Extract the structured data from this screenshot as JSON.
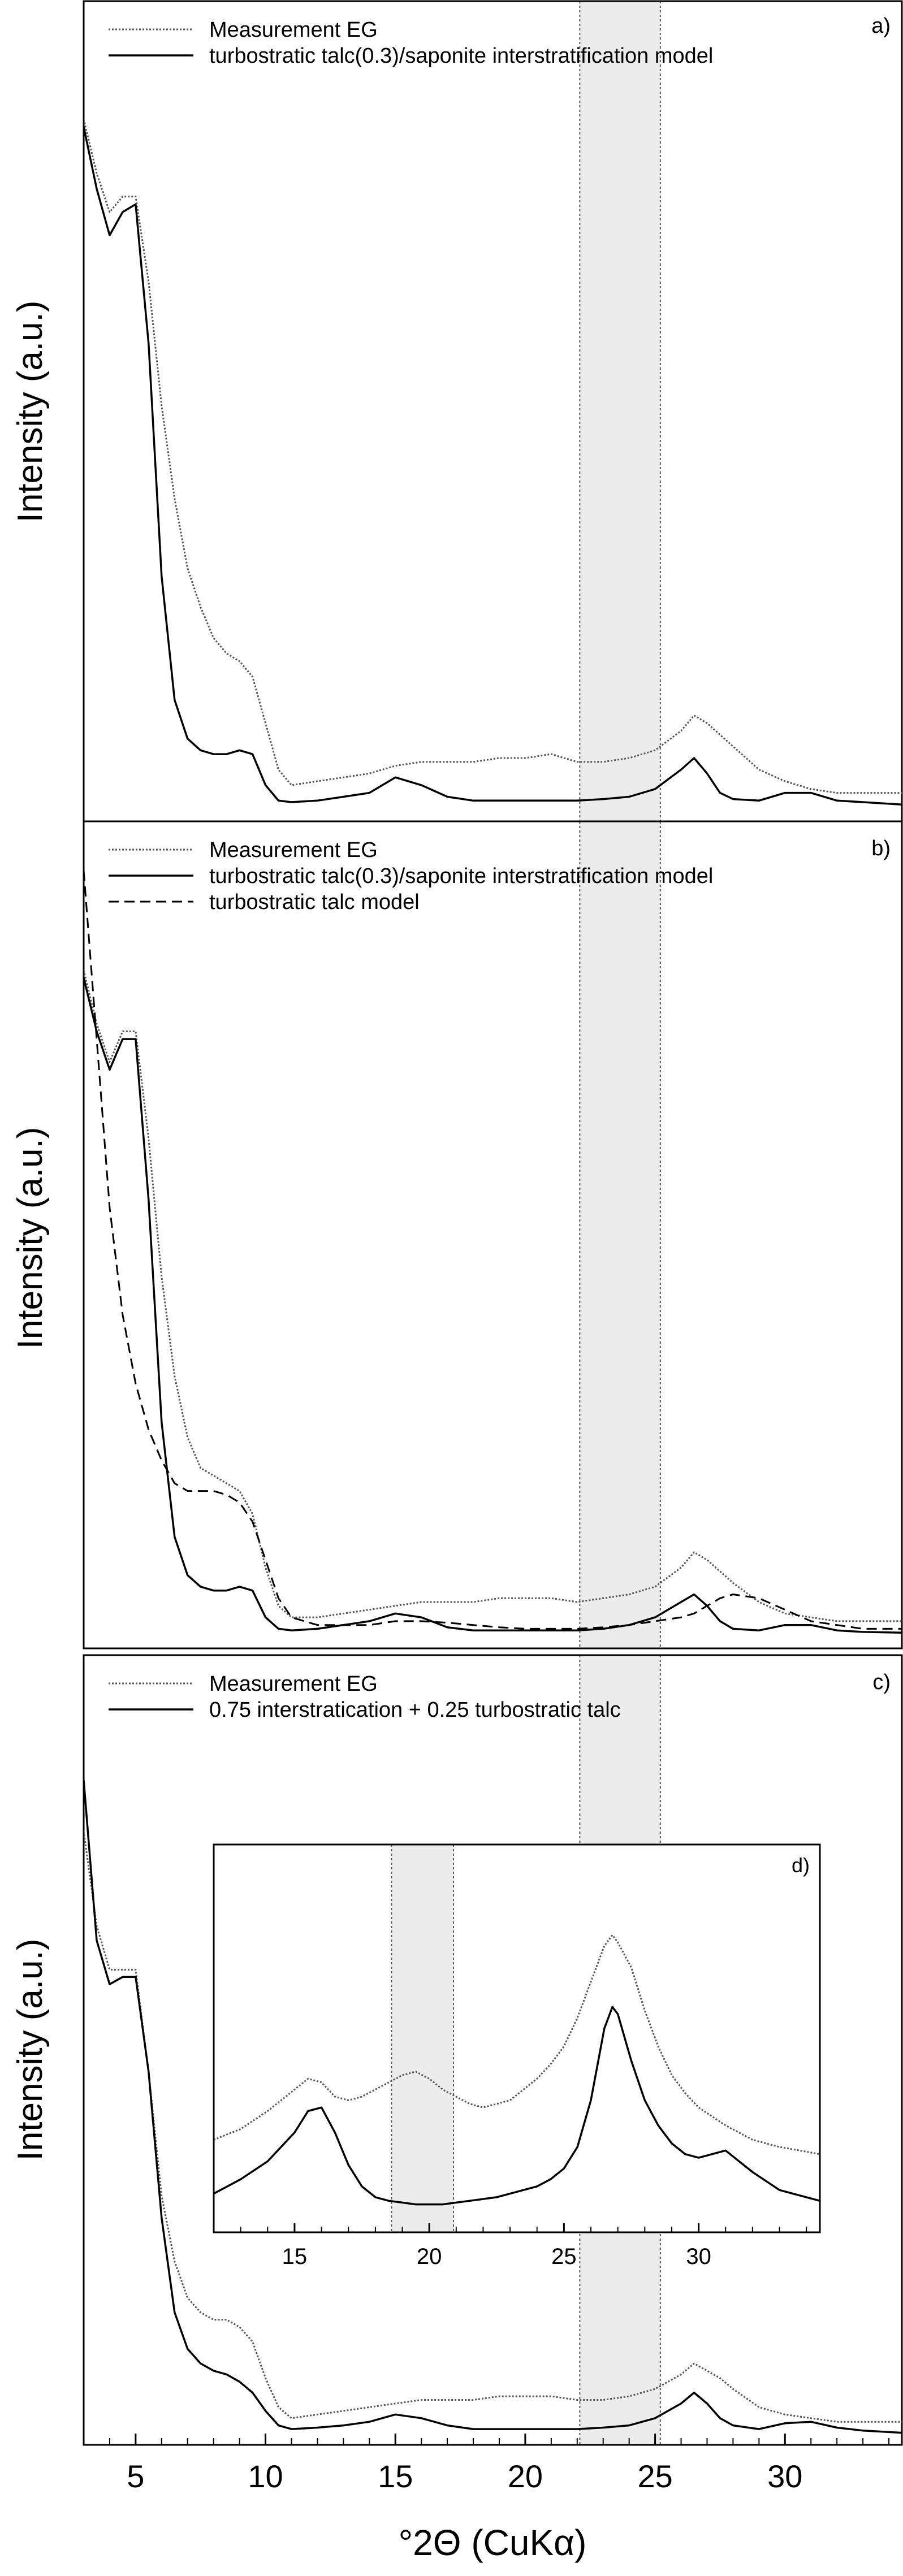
{
  "figure": {
    "xlabel": "°2Θ (CuKα)",
    "shaded_band": [
      22.1,
      25.2
    ]
  },
  "chart_data": [
    {
      "panel": "a",
      "type": "line",
      "corner_label": "a)",
      "ylabel": "Intensity (a.u.)",
      "xlim": [
        3,
        34.5
      ],
      "ylim": [
        0,
        1
      ],
      "grid": false,
      "legend_position": "top-left",
      "series": [
        {
          "name": "Measurement EG",
          "style": "dotted",
          "x": [
            3,
            3.5,
            4,
            4.5,
            5,
            5.5,
            6,
            6.5,
            7,
            7.5,
            8,
            8.5,
            9,
            9.5,
            10,
            10.5,
            11,
            12,
            13,
            14,
            15,
            16,
            17,
            18,
            19,
            20,
            21,
            22,
            23,
            24,
            25,
            26,
            26.5,
            27,
            27.5,
            28,
            29,
            30,
            31,
            32,
            33,
            34.5
          ],
          "y": [
            0.89,
            0.82,
            0.77,
            0.79,
            0.79,
            0.68,
            0.52,
            0.4,
            0.31,
            0.26,
            0.22,
            0.2,
            0.19,
            0.17,
            0.11,
            0.05,
            0.03,
            0.035,
            0.04,
            0.045,
            0.055,
            0.06,
            0.06,
            0.06,
            0.065,
            0.065,
            0.07,
            0.06,
            0.06,
            0.065,
            0.075,
            0.1,
            0.12,
            0.11,
            0.095,
            0.08,
            0.05,
            0.035,
            0.025,
            0.02,
            0.02,
            0.02
          ]
        },
        {
          "name": "turbostratic talc(0.3)/saponite interstratification model",
          "style": "solid",
          "x": [
            3,
            3.5,
            4,
            4.5,
            5,
            5.5,
            6,
            6.5,
            7,
            7.5,
            8,
            8.5,
            9,
            9.5,
            10,
            10.5,
            11,
            12,
            13,
            14,
            15,
            16,
            17,
            18,
            19,
            20,
            21,
            22,
            23,
            24,
            25,
            26,
            26.5,
            27,
            27.5,
            28,
            29,
            30,
            31,
            32,
            33,
            34.5
          ],
          "y": [
            0.88,
            0.8,
            0.74,
            0.77,
            0.78,
            0.6,
            0.3,
            0.14,
            0.09,
            0.075,
            0.07,
            0.07,
            0.075,
            0.07,
            0.03,
            0.01,
            0.008,
            0.01,
            0.015,
            0.02,
            0.04,
            0.03,
            0.015,
            0.01,
            0.01,
            0.01,
            0.01,
            0.01,
            0.012,
            0.015,
            0.025,
            0.05,
            0.065,
            0.045,
            0.02,
            0.012,
            0.01,
            0.02,
            0.02,
            0.01,
            0.008,
            0.005
          ]
        }
      ]
    },
    {
      "panel": "b",
      "type": "line",
      "corner_label": "b)",
      "ylabel": "Intensity (a.u.)",
      "xlim": [
        3,
        34.5
      ],
      "ylim": [
        0,
        1
      ],
      "grid": false,
      "legend_position": "top-left",
      "series": [
        {
          "name": "Measurement EG",
          "style": "dotted",
          "x": [
            3,
            3.5,
            4,
            4.5,
            5,
            5.5,
            6,
            6.5,
            7,
            7.5,
            8,
            8.5,
            9,
            9.5,
            10,
            10.5,
            11,
            12,
            13,
            14,
            15,
            16,
            17,
            18,
            19,
            20,
            21,
            22,
            23,
            24,
            25,
            26,
            26.5,
            27,
            27.5,
            28,
            29,
            30,
            31,
            32,
            33,
            34.5
          ],
          "y": [
            0.87,
            0.8,
            0.75,
            0.79,
            0.79,
            0.65,
            0.47,
            0.34,
            0.26,
            0.22,
            0.21,
            0.2,
            0.19,
            0.16,
            0.09,
            0.04,
            0.025,
            0.025,
            0.03,
            0.035,
            0.04,
            0.045,
            0.045,
            0.045,
            0.05,
            0.05,
            0.05,
            0.045,
            0.05,
            0.055,
            0.065,
            0.09,
            0.11,
            0.1,
            0.085,
            0.07,
            0.045,
            0.03,
            0.025,
            0.02,
            0.02,
            0.02
          ]
        },
        {
          "name": "turbostratic talc(0.3)/saponite interstratification model",
          "style": "solid",
          "x": [
            3,
            3.5,
            4,
            4.5,
            5,
            5.5,
            6,
            6.5,
            7,
            7.5,
            8,
            8.5,
            9,
            9.5,
            10,
            10.5,
            11,
            12,
            13,
            14,
            15,
            16,
            17,
            18,
            19,
            20,
            21,
            22,
            23,
            24,
            25,
            26,
            26.5,
            27,
            27.5,
            28,
            29,
            30,
            31,
            32,
            33,
            34.5
          ],
          "y": [
            0.86,
            0.79,
            0.74,
            0.78,
            0.78,
            0.57,
            0.28,
            0.13,
            0.08,
            0.065,
            0.06,
            0.06,
            0.065,
            0.06,
            0.025,
            0.01,
            0.008,
            0.01,
            0.015,
            0.02,
            0.03,
            0.025,
            0.012,
            0.008,
            0.008,
            0.008,
            0.008,
            0.008,
            0.01,
            0.015,
            0.025,
            0.045,
            0.055,
            0.04,
            0.02,
            0.01,
            0.008,
            0.015,
            0.015,
            0.008,
            0.006,
            0.005
          ]
        },
        {
          "name": "turbostratic talc model",
          "style": "dashed",
          "x": [
            3,
            3.5,
            4,
            4.5,
            5,
            5.5,
            6,
            6.5,
            7,
            7.5,
            8,
            8.5,
            9,
            9.5,
            10,
            10.5,
            11,
            12,
            13,
            14,
            15,
            16,
            17,
            18,
            19,
            20,
            21,
            22,
            23,
            24,
            25,
            26,
            26.5,
            27,
            27.5,
            28,
            29,
            30,
            31,
            32,
            33,
            34.5
          ],
          "y": [
            1.0,
            0.78,
            0.56,
            0.42,
            0.33,
            0.27,
            0.23,
            0.2,
            0.19,
            0.19,
            0.19,
            0.185,
            0.175,
            0.15,
            0.1,
            0.05,
            0.025,
            0.015,
            0.015,
            0.015,
            0.02,
            0.02,
            0.018,
            0.015,
            0.012,
            0.01,
            0.01,
            0.01,
            0.012,
            0.015,
            0.02,
            0.025,
            0.03,
            0.04,
            0.05,
            0.055,
            0.05,
            0.035,
            0.02,
            0.015,
            0.01,
            0.01
          ]
        }
      ]
    },
    {
      "panel": "c",
      "type": "line",
      "corner_label": "c)",
      "ylabel": "Intensity (a.u.)",
      "xlabel": "°2Θ (CuKα)",
      "xlim": [
        3,
        34.5
      ],
      "ylim": [
        0,
        1
      ],
      "xticks": [
        5,
        10,
        15,
        20,
        25,
        30
      ],
      "grid": false,
      "legend_position": "top-left",
      "series": [
        {
          "name": "Measurement EG",
          "style": "dotted",
          "x": [
            3,
            3.5,
            4,
            4.5,
            5,
            5.5,
            6,
            6.5,
            7,
            7.5,
            8,
            8.5,
            9,
            9.5,
            10,
            10.5,
            11,
            12,
            13,
            14,
            15,
            16,
            17,
            18,
            19,
            20,
            21,
            22,
            23,
            24,
            25,
            26,
            26.5,
            27,
            27.5,
            28,
            29,
            30,
            31,
            32,
            33,
            34.5
          ],
          "y": [
            0.83,
            0.7,
            0.64,
            0.64,
            0.64,
            0.5,
            0.33,
            0.24,
            0.19,
            0.17,
            0.16,
            0.16,
            0.15,
            0.13,
            0.08,
            0.04,
            0.025,
            0.03,
            0.035,
            0.04,
            0.045,
            0.05,
            0.05,
            0.05,
            0.055,
            0.055,
            0.055,
            0.05,
            0.05,
            0.055,
            0.065,
            0.085,
            0.1,
            0.09,
            0.08,
            0.065,
            0.04,
            0.03,
            0.025,
            0.02,
            0.02,
            0.02
          ]
        },
        {
          "name": "0.75 interstratication + 0.25 turbostratic talc",
          "style": "solid",
          "x": [
            3,
            3.5,
            4,
            4.5,
            5,
            5.5,
            6,
            6.5,
            7,
            7.5,
            8,
            8.5,
            9,
            9.5,
            10,
            10.5,
            11,
            12,
            13,
            14,
            15,
            16,
            17,
            18,
            19,
            20,
            21,
            22,
            23,
            24,
            25,
            26,
            26.5,
            27,
            27.5,
            28,
            29,
            30,
            31,
            32,
            33,
            34.5
          ],
          "y": [
            0.9,
            0.68,
            0.62,
            0.63,
            0.63,
            0.5,
            0.3,
            0.17,
            0.12,
            0.1,
            0.09,
            0.085,
            0.075,
            0.06,
            0.035,
            0.015,
            0.01,
            0.012,
            0.015,
            0.02,
            0.03,
            0.025,
            0.015,
            0.01,
            0.01,
            0.01,
            0.01,
            0.01,
            0.012,
            0.015,
            0.025,
            0.045,
            0.06,
            0.045,
            0.025,
            0.015,
            0.01,
            0.018,
            0.02,
            0.012,
            0.008,
            0.005
          ]
        }
      ]
    },
    {
      "panel": "d",
      "type": "line",
      "corner_label": "d)",
      "xlim": [
        12,
        34.5
      ],
      "ylim": [
        0,
        1
      ],
      "xticks": [
        15,
        20,
        25,
        30
      ],
      "inset": true,
      "shaded_band": [
        18.6,
        20.9
      ],
      "series": [
        {
          "name": "Measurement EG",
          "style": "dotted",
          "x": [
            12,
            13,
            14,
            15,
            15.5,
            16,
            16.5,
            17,
            17.5,
            18,
            18.5,
            19,
            19.5,
            20,
            20.5,
            21,
            21.5,
            22,
            22.5,
            23,
            23.5,
            24,
            24.5,
            25,
            25.5,
            26,
            26.5,
            26.8,
            27,
            27.5,
            28,
            28.5,
            29,
            29.5,
            30,
            31,
            32,
            33,
            34.5
          ],
          "y": [
            0.22,
            0.25,
            0.3,
            0.36,
            0.39,
            0.38,
            0.34,
            0.33,
            0.34,
            0.36,
            0.38,
            0.4,
            0.41,
            0.39,
            0.36,
            0.34,
            0.32,
            0.31,
            0.32,
            0.33,
            0.36,
            0.39,
            0.43,
            0.48,
            0.56,
            0.66,
            0.76,
            0.79,
            0.77,
            0.7,
            0.58,
            0.48,
            0.4,
            0.35,
            0.31,
            0.26,
            0.22,
            0.2,
            0.18
          ]
        },
        {
          "name": "0.75 interstratication + 0.25 turbostratic talc",
          "style": "solid",
          "x": [
            12,
            13,
            14,
            15,
            15.5,
            16,
            16.5,
            17,
            17.5,
            18,
            18.5,
            19,
            19.5,
            20,
            20.5,
            21,
            21.5,
            22,
            22.5,
            23,
            23.5,
            24,
            24.5,
            25,
            25.5,
            26,
            26.5,
            26.8,
            27,
            27.5,
            28,
            28.5,
            29,
            29.5,
            30,
            31,
            32,
            33,
            34.5
          ],
          "y": [
            0.07,
            0.11,
            0.16,
            0.24,
            0.3,
            0.31,
            0.24,
            0.15,
            0.09,
            0.06,
            0.05,
            0.045,
            0.04,
            0.04,
            0.04,
            0.045,
            0.05,
            0.055,
            0.06,
            0.07,
            0.08,
            0.09,
            0.11,
            0.14,
            0.2,
            0.33,
            0.53,
            0.59,
            0.57,
            0.44,
            0.33,
            0.26,
            0.21,
            0.18,
            0.17,
            0.19,
            0.13,
            0.08,
            0.05
          ]
        }
      ]
    }
  ]
}
